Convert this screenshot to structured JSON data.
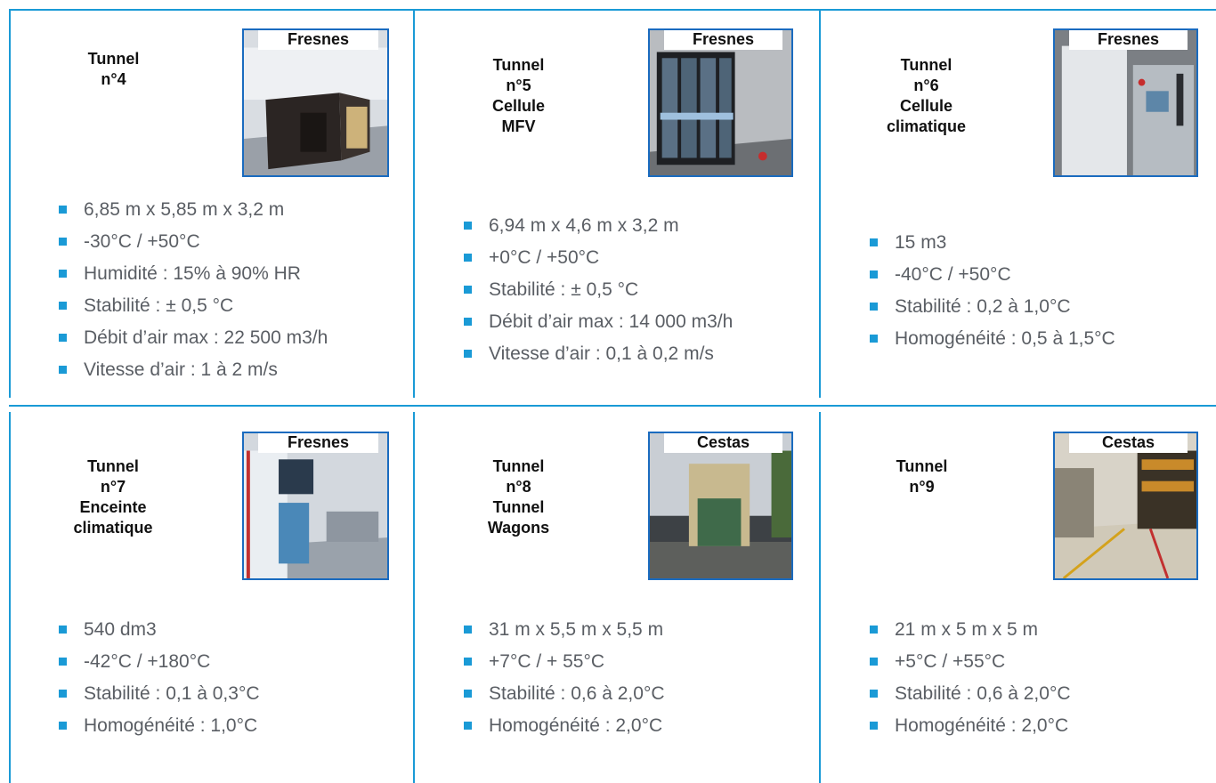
{
  "cards": [
    {
      "title": [
        "Tunnel",
        "n°4"
      ],
      "site": "Fresnes",
      "photo_subject": "test-chamber-icon",
      "specs": [
        "6,85 m x 5,85 m x 3,2 m",
        "-30°C / +50°C",
        "Humidité : 15% à 90% HR",
        "Stabilité : ± 0,5 °C",
        "Débit d’air max : 22 500 m3/h",
        "Vitesse d’air : 1 à 2 m/s"
      ]
    },
    {
      "title": [
        "Tunnel",
        "n°5",
        "Cellule",
        "MFV"
      ],
      "site": "Fresnes",
      "photo_subject": "display-fridge-icon",
      "specs": [
        "6,94 m x 4,6 m x 3,2 m",
        "+0°C / +50°C",
        "Stabilité : ± 0,5 °C",
        "Débit d’air max : 14 000 m3/h",
        "Vitesse d’air : 0,1 à 0,2 m/s"
      ]
    },
    {
      "title": [
        "Tunnel",
        "n°6",
        "Cellule",
        "climatique"
      ],
      "site": "Fresnes",
      "photo_subject": "climate-cell-icon",
      "specs": [
        "15 m3",
        "-40°C / +50°C",
        "Stabilité : 0,2 à 1,0°C",
        "Homogénéité : 0,5 à 1,5°C"
      ]
    },
    {
      "title": [
        "Tunnel",
        "n°7",
        "Enceinte",
        "climatique"
      ],
      "site": "Fresnes",
      "photo_subject": "climate-enclosure-icon",
      "specs": [
        "540 dm3",
        "-42°C / +180°C",
        "Stabilité : 0,1 à 0,3°C",
        "Homogénéité : 1,0°C"
      ]
    },
    {
      "title": [
        "Tunnel",
        "n°8",
        "Tunnel",
        "Wagons"
      ],
      "site": "Cestas",
      "photo_subject": "wagon-building-icon",
      "specs": [
        "31 m x 5,5 m x 5,5 m",
        "+7°C / + 55°C",
        "Stabilité : 0,6 à 2,0°C",
        "Homogénéité : 2,0°C"
      ]
    },
    {
      "title": [
        "Tunnel",
        "n°9"
      ],
      "site": "Cestas",
      "photo_subject": "tunnel-hall-icon",
      "specs": [
        "21 m x 5 m x 5 m",
        "+5°C / +55°C",
        "Stabilité : 0,6 à 2,0°C",
        "Homogénéité : 2,0°C"
      ]
    }
  ],
  "colors": {
    "accent": "#1a9ad6",
    "photo_border": "#1a6bbf"
  }
}
